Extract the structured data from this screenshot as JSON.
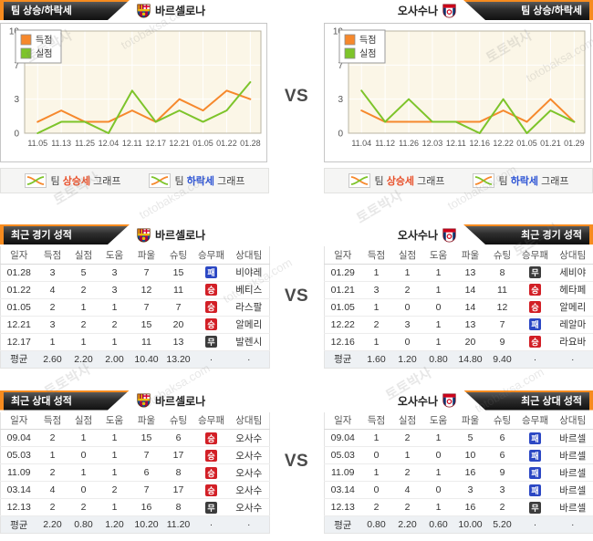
{
  "teams": {
    "home": "바르셀로나",
    "away": "오사수나"
  },
  "vs_label": "VS",
  "watermark_texts": [
    "토토박사",
    "totobaksa.com"
  ],
  "colors": {
    "accent": "#f68b1f",
    "scored": "#f6882c",
    "conceded": "#7dc42a",
    "win": "#d21f26",
    "draw": "#3c3c3c",
    "loss": "#2c48c4",
    "rise": "#e8502a",
    "fall": "#2b52d4"
  },
  "sections": {
    "trend": {
      "title": "팀 상승/하락세"
    },
    "recent": {
      "title": "최근 경기 성적"
    },
    "h2h": {
      "title": "최근 상대 성적"
    }
  },
  "graph_legend": {
    "rise": {
      "prefix": "팀",
      "word": "상승세",
      "suffix": "그래프"
    },
    "fall": {
      "prefix": "팀",
      "word": "하락세",
      "suffix": "그래프"
    }
  },
  "table_columns": [
    "일자",
    "득점",
    "실점",
    "도움",
    "파울",
    "슈팅",
    "승무패",
    "상대팀"
  ],
  "chart_data": [
    {
      "type": "line",
      "title": "바르셀로나 득점/실점 추이",
      "x": [
        "11.05",
        "11.13",
        "11.25",
        "12.04",
        "12.11",
        "12.17",
        "12.21",
        "01.05",
        "01.22",
        "01.28"
      ],
      "series": [
        {
          "name": "득점",
          "color": "#f6882c",
          "values": [
            1,
            2,
            1,
            1,
            2,
            1,
            3,
            2,
            4,
            3
          ]
        },
        {
          "name": "실점",
          "color": "#7dc42a",
          "values": [
            0,
            1,
            1,
            0,
            4,
            1,
            2,
            1,
            2,
            5
          ]
        }
      ],
      "yticks": [
        0,
        3,
        7,
        10
      ],
      "ylim": [
        0,
        10
      ],
      "grid": true,
      "legend_position": "top-left"
    },
    {
      "type": "line",
      "title": "오사수나 득점/실점 추이",
      "x": [
        "11.04",
        "11.12",
        "11.26",
        "12.03",
        "12.11",
        "12.16",
        "12.22",
        "01.05",
        "01.21",
        "01.29"
      ],
      "series": [
        {
          "name": "득점",
          "color": "#f6882c",
          "values": [
            2,
            1,
            1,
            1,
            1,
            1,
            2,
            1,
            3,
            1
          ]
        },
        {
          "name": "실점",
          "color": "#7dc42a",
          "values": [
            4,
            1,
            3,
            1,
            1,
            0,
            3,
            0,
            2,
            1
          ]
        }
      ],
      "yticks": [
        0,
        3,
        7,
        10
      ],
      "ylim": [
        0,
        10
      ],
      "grid": true,
      "legend_position": "top-left"
    }
  ],
  "tables": {
    "recent_home": {
      "rows": [
        [
          "01.28",
          "3",
          "5",
          "3",
          "7",
          "15",
          "패",
          "비야레"
        ],
        [
          "01.22",
          "4",
          "2",
          "3",
          "12",
          "11",
          "승",
          "베티스"
        ],
        [
          "01.05",
          "2",
          "1",
          "1",
          "7",
          "7",
          "승",
          "라스팔"
        ],
        [
          "12.21",
          "3",
          "2",
          "2",
          "15",
          "20",
          "승",
          "알메리"
        ],
        [
          "12.17",
          "1",
          "1",
          "1",
          "11",
          "13",
          "무",
          "발렌시"
        ]
      ],
      "avg": [
        "평균",
        "2.60",
        "2.20",
        "2.00",
        "10.40",
        "13.20",
        "·",
        "·"
      ]
    },
    "recent_away": {
      "rows": [
        [
          "01.29",
          "1",
          "1",
          "1",
          "13",
          "8",
          "무",
          "세비야"
        ],
        [
          "01.21",
          "3",
          "2",
          "1",
          "14",
          "11",
          "승",
          "헤타페"
        ],
        [
          "01.05",
          "1",
          "0",
          "0",
          "14",
          "12",
          "승",
          "알메리"
        ],
        [
          "12.22",
          "2",
          "3",
          "1",
          "13",
          "7",
          "패",
          "레알마"
        ],
        [
          "12.16",
          "1",
          "0",
          "1",
          "20",
          "9",
          "승",
          "라요바"
        ]
      ],
      "avg": [
        "평균",
        "1.60",
        "1.20",
        "0.80",
        "14.80",
        "9.40",
        "·",
        "·"
      ]
    },
    "h2h_home": {
      "rows": [
        [
          "09.04",
          "2",
          "1",
          "1",
          "15",
          "6",
          "승",
          "오사수"
        ],
        [
          "05.03",
          "1",
          "0",
          "1",
          "7",
          "17",
          "승",
          "오사수"
        ],
        [
          "11.09",
          "2",
          "1",
          "1",
          "6",
          "8",
          "승",
          "오사수"
        ],
        [
          "03.14",
          "4",
          "0",
          "2",
          "7",
          "17",
          "승",
          "오사수"
        ],
        [
          "12.13",
          "2",
          "2",
          "1",
          "16",
          "8",
          "무",
          "오사수"
        ]
      ],
      "avg": [
        "평균",
        "2.20",
        "0.80",
        "1.20",
        "10.20",
        "11.20",
        "·",
        "·"
      ]
    },
    "h2h_away": {
      "rows": [
        [
          "09.04",
          "1",
          "2",
          "1",
          "5",
          "6",
          "패",
          "바르셀"
        ],
        [
          "05.03",
          "0",
          "1",
          "0",
          "10",
          "6",
          "패",
          "바르셀"
        ],
        [
          "11.09",
          "1",
          "2",
          "1",
          "16",
          "9",
          "패",
          "바르셀"
        ],
        [
          "03.14",
          "0",
          "4",
          "0",
          "3",
          "3",
          "패",
          "바르셀"
        ],
        [
          "12.13",
          "2",
          "2",
          "1",
          "16",
          "2",
          "무",
          "바르셀"
        ]
      ],
      "avg": [
        "평균",
        "0.80",
        "2.20",
        "0.60",
        "10.00",
        "5.20",
        "·",
        "·"
      ]
    }
  }
}
